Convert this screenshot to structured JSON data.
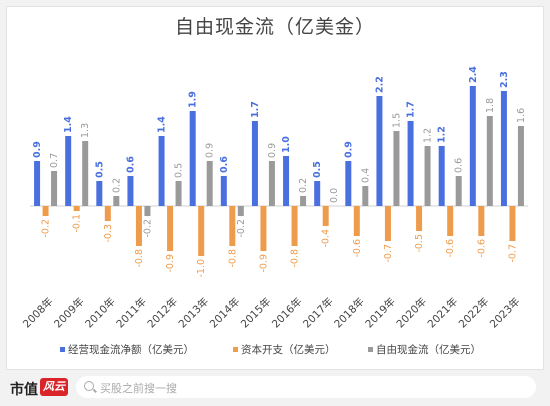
{
  "chart_data": {
    "type": "bar",
    "title": "自由现金流（亿美金）",
    "categories": [
      "2008年",
      "2009年",
      "2010年",
      "2011年",
      "2012年",
      "2013年",
      "2014年",
      "2015年",
      "2016年",
      "2017年",
      "2018年",
      "2019年",
      "2020年",
      "2021年",
      "2022年",
      "2023年"
    ],
    "series": [
      {
        "name": "经营现金流净额（亿美元）",
        "color": "#4a70e0",
        "values": [
          0.9,
          1.4,
          0.5,
          0.6,
          1.4,
          1.9,
          0.6,
          1.7,
          1.0,
          0.5,
          0.9,
          2.2,
          1.7,
          1.2,
          2.4,
          2.3
        ]
      },
      {
        "name": "资本开支（亿美元）",
        "color": "#ee9c4c",
        "values": [
          -0.2,
          -0.1,
          -0.3,
          -0.8,
          -0.9,
          -1.0,
          -0.8,
          -0.9,
          -0.8,
          -0.4,
          -0.6,
          -0.7,
          -0.5,
          -0.6,
          -0.6,
          -0.7
        ]
      },
      {
        "name": "自由现金流（亿美元）",
        "color": "#9a9a9a",
        "values": [
          0.7,
          1.3,
          0.2,
          -0.2,
          0.5,
          0.9,
          -0.2,
          0.9,
          0.2,
          0.0,
          0.4,
          1.5,
          1.2,
          0.6,
          1.8,
          1.6
        ]
      }
    ],
    "ylim": [
      -1.2,
      2.5
    ],
    "grid": false,
    "legend": "bottom"
  },
  "footer": {
    "brand": "市值",
    "badge": "风云",
    "search_placeholder": "买股之前搜一搜"
  }
}
